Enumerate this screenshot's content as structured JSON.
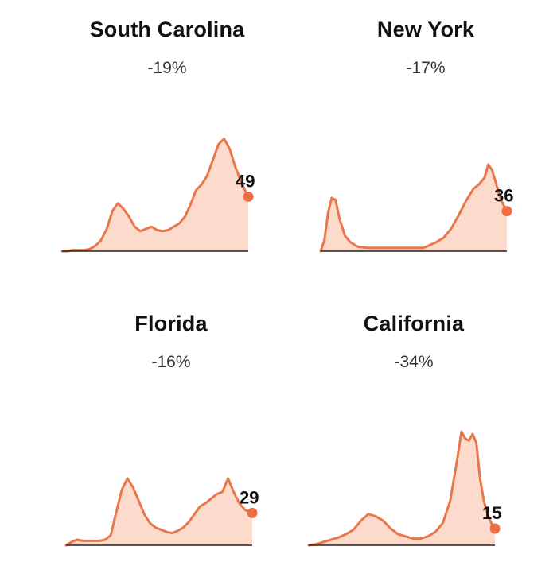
{
  "colors": {
    "line": "#e8774b",
    "fill": "#fbd5c4",
    "axis": "#222222",
    "dot": "#ec6f45"
  },
  "chart_data": [
    {
      "type": "area",
      "title": "South Carolina",
      "change": "-19%",
      "last_value": "49",
      "x": [
        0,
        3,
        6,
        9,
        12,
        15,
        18,
        21,
        24,
        27,
        30,
        33,
        36,
        39,
        42,
        45,
        48,
        51,
        54,
        57,
        60,
        63,
        66,
        69,
        72,
        75,
        78,
        81,
        84,
        87,
        90,
        93,
        96,
        99,
        100
      ],
      "values": [
        0,
        0,
        1,
        1,
        1,
        2,
        5,
        10,
        20,
        36,
        43,
        38,
        31,
        22,
        18,
        20,
        22,
        19,
        18,
        19,
        22,
        25,
        31,
        42,
        55,
        60,
        68,
        82,
        96,
        101,
        92,
        76,
        63,
        52,
        49
      ],
      "ylim": [
        0,
        125
      ]
    },
    {
      "type": "area",
      "title": "New York",
      "change": "-17%",
      "last_value": "36",
      "x": [
        0,
        2,
        4,
        6,
        8,
        10,
        13,
        16,
        20,
        25,
        30,
        35,
        40,
        45,
        50,
        55,
        58,
        62,
        66,
        70,
        74,
        78,
        82,
        85,
        88,
        90,
        92,
        94,
        96,
        98,
        100
      ],
      "values": [
        0,
        10,
        35,
        48,
        46,
        30,
        14,
        8,
        4,
        3,
        3,
        3,
        3,
        3,
        3,
        3,
        5,
        8,
        12,
        20,
        32,
        45,
        56,
        60,
        66,
        78,
        73,
        62,
        50,
        42,
        36
      ],
      "ylim": [
        0,
        125
      ]
    },
    {
      "type": "area",
      "title": "Florida",
      "change": "-16%",
      "last_value": "29",
      "x": [
        0,
        3,
        6,
        9,
        12,
        15,
        18,
        21,
        24,
        27,
        30,
        33,
        36,
        39,
        42,
        45,
        48,
        51,
        54,
        57,
        60,
        63,
        66,
        69,
        72,
        75,
        78,
        81,
        84,
        87,
        90,
        93,
        96,
        100
      ],
      "values": [
        0,
        3,
        5,
        4,
        4,
        4,
        4,
        5,
        9,
        30,
        50,
        60,
        52,
        40,
        28,
        20,
        16,
        14,
        12,
        11,
        13,
        16,
        21,
        28,
        35,
        38,
        42,
        46,
        48,
        60,
        48,
        38,
        32,
        29
      ],
      "ylim": [
        0,
        125
      ]
    },
    {
      "type": "area",
      "title": "California",
      "change": "-34%",
      "last_value": "15",
      "x": [
        0,
        4,
        8,
        12,
        16,
        20,
        24,
        28,
        32,
        36,
        40,
        44,
        48,
        52,
        56,
        60,
        64,
        68,
        72,
        76,
        80,
        82,
        84,
        86,
        88,
        90,
        92,
        94,
        96,
        98,
        100
      ],
      "values": [
        0,
        1,
        3,
        5,
        7,
        10,
        14,
        22,
        28,
        26,
        22,
        15,
        10,
        8,
        6,
        6,
        8,
        12,
        20,
        40,
        80,
        102,
        96,
        94,
        100,
        92,
        60,
        40,
        28,
        20,
        15
      ],
      "ylim": [
        0,
        125
      ]
    }
  ]
}
